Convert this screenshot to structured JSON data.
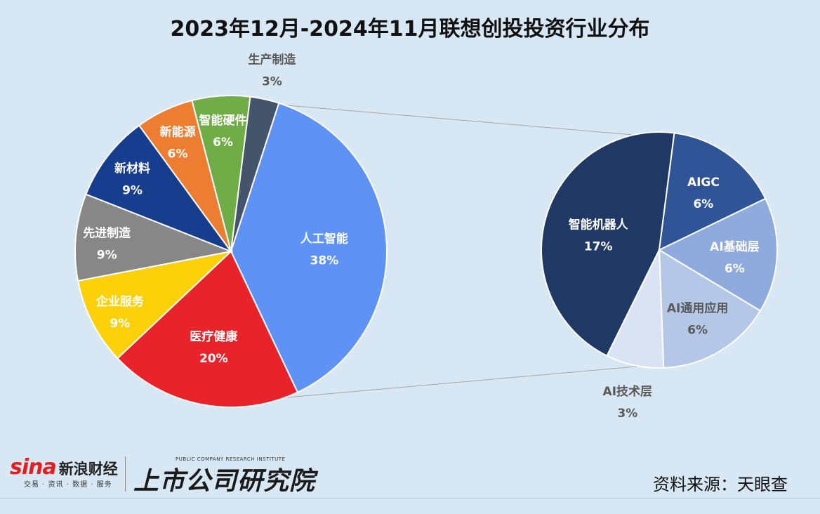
{
  "title": "2023年12月-2024年11月联想创投投资行业分布",
  "source": "资料来源：天眼查",
  "logos": {
    "sina_brand": "sina",
    "sina_name": "新浪财经",
    "sina_sub": "交易 · 资讯 · 数据 · 服务",
    "institute_en": "PUBLIC COMPANY RESEARCH INSTITUTE",
    "institute_cn": "上市公司研究院"
  },
  "chart_data": [
    {
      "type": "pie",
      "slices": [
        {
          "label": "人工智能",
          "value": 38,
          "display": "38%",
          "color": "#5f92f5",
          "text_color": "#ffffff"
        },
        {
          "label": "医疗健康",
          "value": 20,
          "display": "20%",
          "color": "#e8242a",
          "text_color": "#ffffff"
        },
        {
          "label": "企业服务",
          "value": 9,
          "display": "9%",
          "color": "#fdd10a",
          "text_color": "#ffffff"
        },
        {
          "label": "先进制造",
          "value": 9,
          "display": "9%",
          "color": "#878787",
          "text_color": "#ffffff"
        },
        {
          "label": "新材料",
          "value": 9,
          "display": "9%",
          "color": "#163d8e",
          "text_color": "#ffffff"
        },
        {
          "label": "新能源",
          "value": 6,
          "display": "6%",
          "color": "#ed7d31",
          "text_color": "#ffffff"
        },
        {
          "label": "智能硬件",
          "value": 6,
          "display": "6%",
          "color": "#70ad47",
          "text_color": "#ffffff"
        },
        {
          "label": "生产制造",
          "value": 3,
          "display": "3%",
          "color": "#44546a",
          "text_color": "#595959",
          "label_outside": true
        }
      ]
    },
    {
      "type": "pie",
      "slices": [
        {
          "label": "智能机器人",
          "value": 17,
          "display": "17%",
          "color": "#203864",
          "text_color": "#ffffff"
        },
        {
          "label": "AIGC",
          "value": 6,
          "display": "6%",
          "color": "#2f5597",
          "text_color": "#ffffff"
        },
        {
          "label": "AI基础层",
          "value": 6,
          "display": "6%",
          "color": "#8faadc",
          "text_color": "#ffffff"
        },
        {
          "label": "AI通用应用",
          "value": 6,
          "display": "6%",
          "color": "#b4c7e7",
          "text_color": "#595959"
        },
        {
          "label": "AI技术层",
          "value": 3,
          "display": "3%",
          "color": "#dae3f3",
          "text_color": "#595959",
          "label_outside": true
        }
      ]
    }
  ]
}
